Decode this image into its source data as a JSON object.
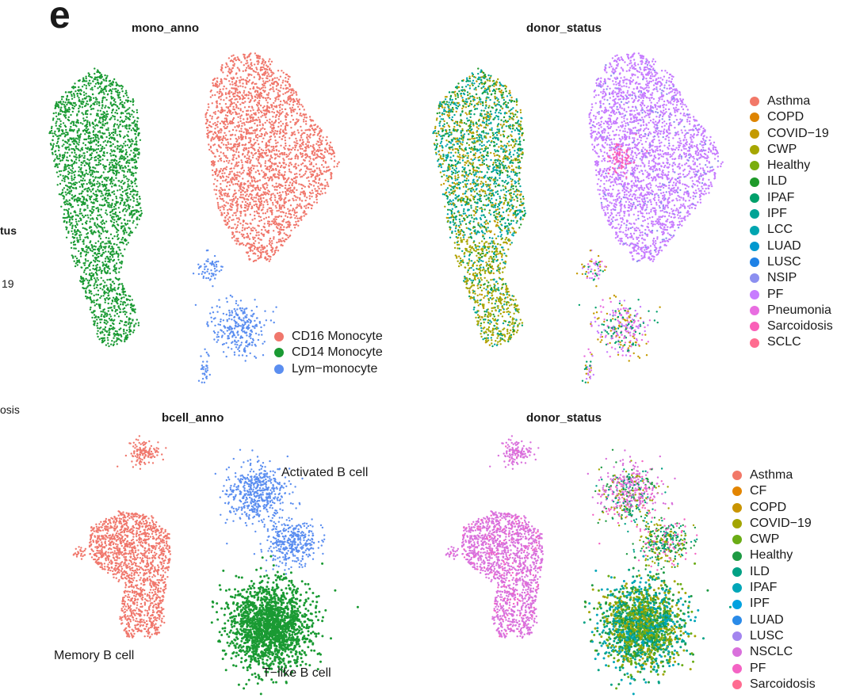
{
  "figure": {
    "panel_letter": "e"
  },
  "cropped_text": [
    "tus",
    "19",
    "osis"
  ],
  "chart_data": [
    {
      "type": "scatter",
      "title": "mono_anno",
      "legend": [
        "CD16 Monocyte",
        "CD14 Monocyte",
        "Lym−monocyte"
      ],
      "colors": [
        "#f0776c",
        "#1a9a33",
        "#5b8ef0"
      ]
    },
    {
      "type": "scatter",
      "title": "donor_status",
      "legend": [
        "Asthma",
        "COPD",
        "COVID−19",
        "CWP",
        "Healthy",
        "ILD",
        "IPAF",
        "IPF",
        "LCC",
        "LUAD",
        "LUSC",
        "NSIP",
        "PF",
        "Pneumonia",
        "Sarcoidosis",
        "SCLC"
      ],
      "colors": [
        "#f27868",
        "#de8400",
        "#c49a00",
        "#a6a600",
        "#79ad0d",
        "#1e9a2a",
        "#00a06a",
        "#00a395",
        "#00a5b0",
        "#0098cf",
        "#1f82e6",
        "#8b8ff0",
        "#c77cff",
        "#e86de0",
        "#fa5fb8",
        "#ff6c90"
      ]
    },
    {
      "type": "scatter",
      "title": "bcell_anno",
      "labels": [
        "Activated B cell",
        "Memory B cell",
        "T−like B cell"
      ],
      "colors": [
        "#5b8ef0",
        "#f0776c",
        "#1a9a33"
      ]
    },
    {
      "type": "scatter",
      "title": "donor_status",
      "legend": [
        "Asthma",
        "CF",
        "COPD",
        "COVID−19",
        "CWP",
        "Healthy",
        "ILD",
        "IPAF",
        "IPF",
        "LUAD",
        "LUSC",
        "NSCLC",
        "PF",
        "Sarcoidosis"
      ],
      "colors": [
        "#f27868",
        "#e38500",
        "#c99400",
        "#a3a500",
        "#6aac15",
        "#1e9a43",
        "#00a184",
        "#00a6b8",
        "#00a2e0",
        "#2a8ae8",
        "#a385ef",
        "#d970dc",
        "#f463c4",
        "#ff6c91"
      ]
    }
  ]
}
